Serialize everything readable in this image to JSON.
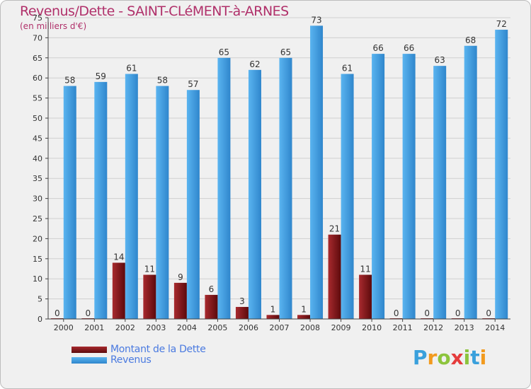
{
  "header": {
    "title": "Revenus/Dette - SAINT-CLéMENT-à-ARNES",
    "subtitle": "(en milliers d'€)"
  },
  "logo": {
    "letters": [
      "P",
      "r",
      "o",
      "x",
      "i",
      "t",
      "i"
    ],
    "colors": [
      "#3aa0dc",
      "#f29a1e",
      "#8cc43c",
      "#e53c3c",
      "#8cc43c",
      "#3aa0dc",
      "#f29a1e"
    ]
  },
  "colors": {
    "dette": "#7a1416",
    "revenus": "#4aa0e0",
    "axis": "#444444",
    "grid": "#cfcfcf"
  },
  "chart_data": {
    "type": "bar",
    "title": "Revenus/Dette - SAINT-CLéMENT-à-ARNES",
    "ylabel": "(en milliers d'€)",
    "xlabel": "",
    "ylim": [
      0,
      75
    ],
    "yticks": [
      "0",
      "5",
      "10",
      "15",
      "20",
      "25",
      "30",
      "35",
      "40",
      "45",
      "50",
      "55",
      "60",
      "65",
      "70",
      "75"
    ],
    "grid": true,
    "legend_position": "bottom-left",
    "categories": [
      "2000",
      "2001",
      "2002",
      "2003",
      "2004",
      "2005",
      "2006",
      "2007",
      "2008",
      "2009",
      "2010",
      "2011",
      "2012",
      "2013",
      "2014"
    ],
    "series": [
      {
        "name": "Montant de la Dette",
        "color": "#7a1416",
        "values": [
          0,
          0,
          14,
          11,
          9,
          6,
          3,
          1,
          1,
          21,
          11,
          0,
          0,
          0,
          0
        ],
        "labels": [
          "0",
          "0",
          "14",
          "11",
          "9",
          "6",
          "3",
          "1",
          "1",
          "21",
          "11",
          "0",
          "0",
          "0",
          "0"
        ]
      },
      {
        "name": "Revenus",
        "color": "#4aa0e0",
        "values": [
          58,
          59,
          61,
          58,
          57,
          65,
          62,
          65,
          73,
          61,
          66,
          66,
          63,
          68,
          72
        ],
        "labels": [
          "58",
          "59",
          "61",
          "58",
          "57",
          "65",
          "62",
          "65",
          "73",
          "61",
          "66",
          "66",
          "63",
          "68",
          "72"
        ]
      }
    ]
  }
}
